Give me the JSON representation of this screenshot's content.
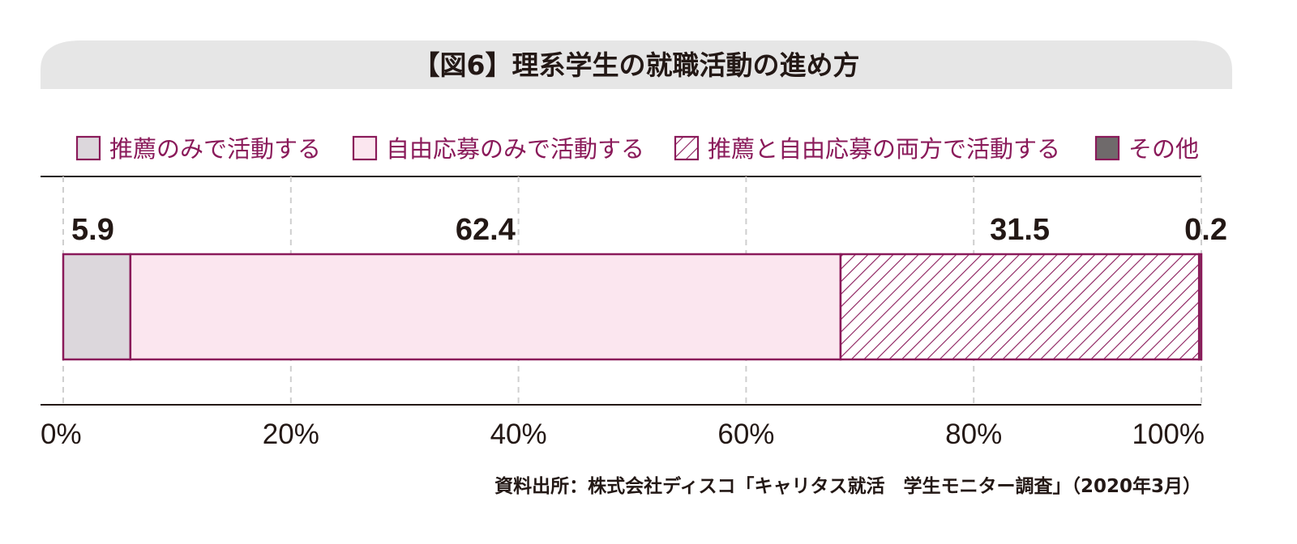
{
  "chart_data": {
    "type": "bar",
    "orientation": "horizontal",
    "stacked": true,
    "title": "【図6】理系学生の就職活動の進め方",
    "categories": [
      ""
    ],
    "series": [
      {
        "name": "その他",
        "values": [
          0.2
        ],
        "color": "#6f6a6b",
        "pattern": "solid"
      }
    ],
    "segments": [
      {
        "name": "推薦のみで活動する",
        "value": 5.9,
        "label": "5.9",
        "fill": "#dcd7dc",
        "pattern": "solid"
      },
      {
        "name": "自由応募のみで活動する",
        "value": 62.4,
        "label": "62.4",
        "fill": "#fbe6ef",
        "pattern": "solid"
      },
      {
        "name": "推薦と自由応募の両方で活動する",
        "value": 31.5,
        "label": "31.5",
        "fill": "#ffffff",
        "pattern": "hatch"
      },
      {
        "name": "その他",
        "value": 0.2,
        "label": "0.2",
        "fill": "#6f6a6b",
        "pattern": "solid"
      }
    ],
    "legend": [
      {
        "label": "推薦のみで活動する",
        "fill": "#dcd7dc",
        "pattern": "solid"
      },
      {
        "label": "自由応募のみで活動する",
        "fill": "#fbe6ef",
        "pattern": "solid"
      },
      {
        "label": "推薦と自由応募の両方で活動する",
        "fill": "#ffffff",
        "pattern": "hatch"
      },
      {
        "label": "その他",
        "fill": "#6f6a6b",
        "pattern": "solid"
      }
    ],
    "xlim": [
      0,
      100
    ],
    "xticks": [
      0,
      20,
      40,
      60,
      80,
      100
    ],
    "xtick_labels": [
      "0%",
      "20%",
      "40%",
      "60%",
      "80%",
      "100%"
    ],
    "grid": true,
    "legend_position": "top",
    "xlabel": "",
    "ylabel": "",
    "source": "資料出所：株式会社ディスコ「キャリタス就活　学生モニター調査」（2020年3月）",
    "colors": {
      "accent": "#8a1a5a",
      "title_band": "#e6e6e6",
      "text": "#231815",
      "grid": "#cfcfcf"
    }
  }
}
